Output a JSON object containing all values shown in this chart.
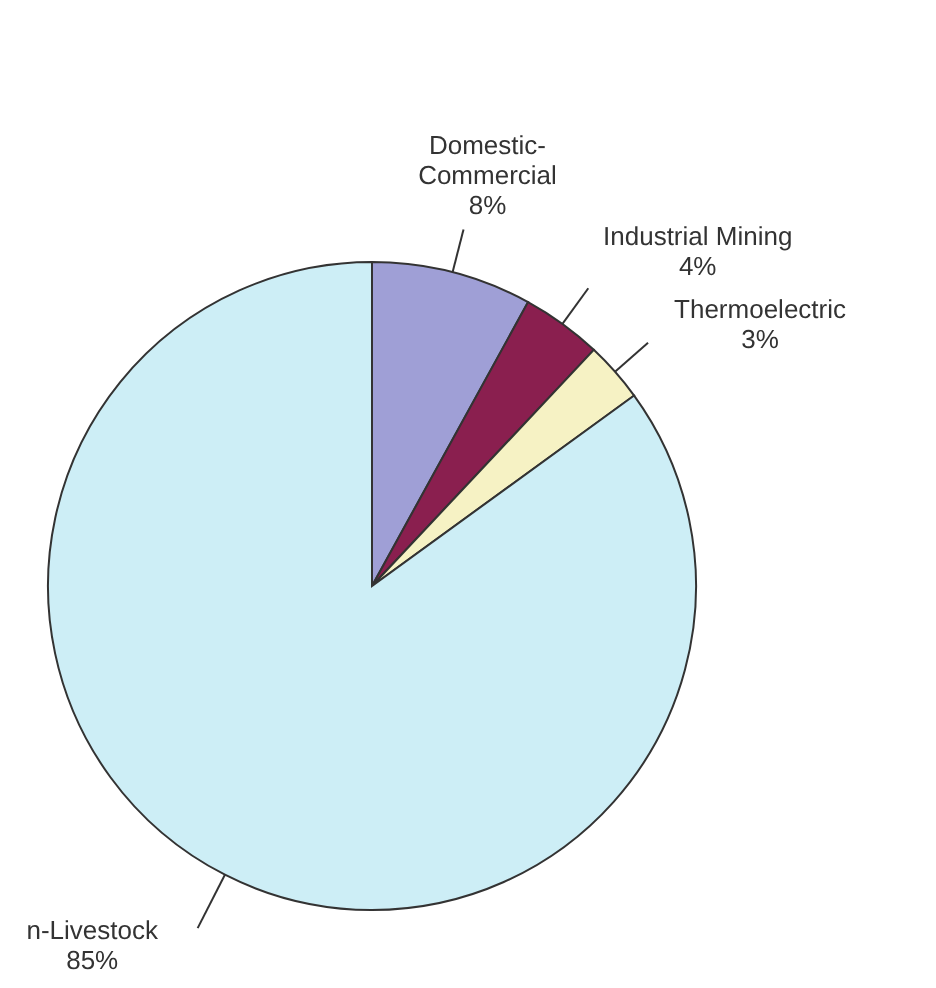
{
  "chart_data": {
    "type": "pie",
    "categories": [
      "Domestic-Commercial",
      "Industrial Mining",
      "Thermoelectric",
      "n-Livestock"
    ],
    "values": [
      8,
      4,
      3,
      85
    ],
    "colors": [
      "#9f9fd6",
      "#8a1f4f",
      "#f6f2c4",
      "#cdeef6"
    ],
    "value_labels": [
      "8%",
      "4%",
      "3%",
      "85%"
    ],
    "legend": false
  }
}
